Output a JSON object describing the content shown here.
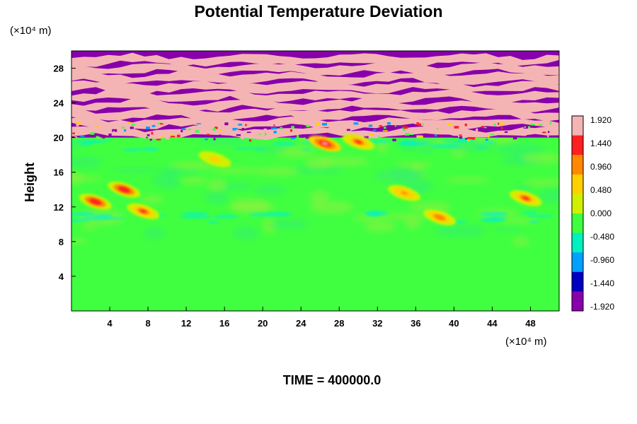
{
  "chart_data": {
    "type": "heatmap",
    "title": "Potential Temperature Deviation",
    "ylabel": "Height",
    "x_unit": "(×10⁴ m)",
    "y_unit": "(×10⁴ m)",
    "x_range": [
      0,
      51
    ],
    "y_range": [
      0,
      30
    ],
    "x_ticks": [
      "4",
      "8",
      "12",
      "16",
      "20",
      "24",
      "28",
      "32",
      "36",
      "40",
      "44",
      "48"
    ],
    "y_ticks": [
      "4",
      "8",
      "12",
      "16",
      "20",
      "24",
      "28"
    ],
    "colorbar": {
      "min": -1.92,
      "max": 1.92,
      "labels": [
        "1.920",
        "1.440",
        "0.960",
        "0.480",
        "0.000",
        "-0.480",
        "-0.960",
        "-1.440",
        "-1.920"
      ],
      "colors": [
        "#f4b4b4",
        "#ff2020",
        "#ff8800",
        "#ffd000",
        "#d0f000",
        "#40ff40",
        "#00f0c0",
        "#00a0ff",
        "#0000c0",
        "#8800aa"
      ]
    },
    "background_value": 0.0,
    "upper_layer": {
      "y_start": 20,
      "y_end": 30,
      "alternating_values": [
        1.92,
        -1.92
      ]
    },
    "warm_anomalies": [
      {
        "x": 2.5,
        "y": 12.6,
        "value": 1.6
      },
      {
        "x": 5.5,
        "y": 14.0,
        "value": 1.7
      },
      {
        "x": 7.5,
        "y": 11.5,
        "value": 1.5
      },
      {
        "x": 15.0,
        "y": 17.5,
        "value": 0.7
      },
      {
        "x": 26.5,
        "y": 19.3,
        "value": 1.8
      },
      {
        "x": 30.0,
        "y": 19.5,
        "value": 1.4
      },
      {
        "x": 34.8,
        "y": 13.6,
        "value": 1.0
      },
      {
        "x": 38.5,
        "y": 10.8,
        "value": 1.1
      },
      {
        "x": 47.5,
        "y": 13.0,
        "value": 1.3
      }
    ],
    "time_label": "TIME = 400000.0"
  }
}
